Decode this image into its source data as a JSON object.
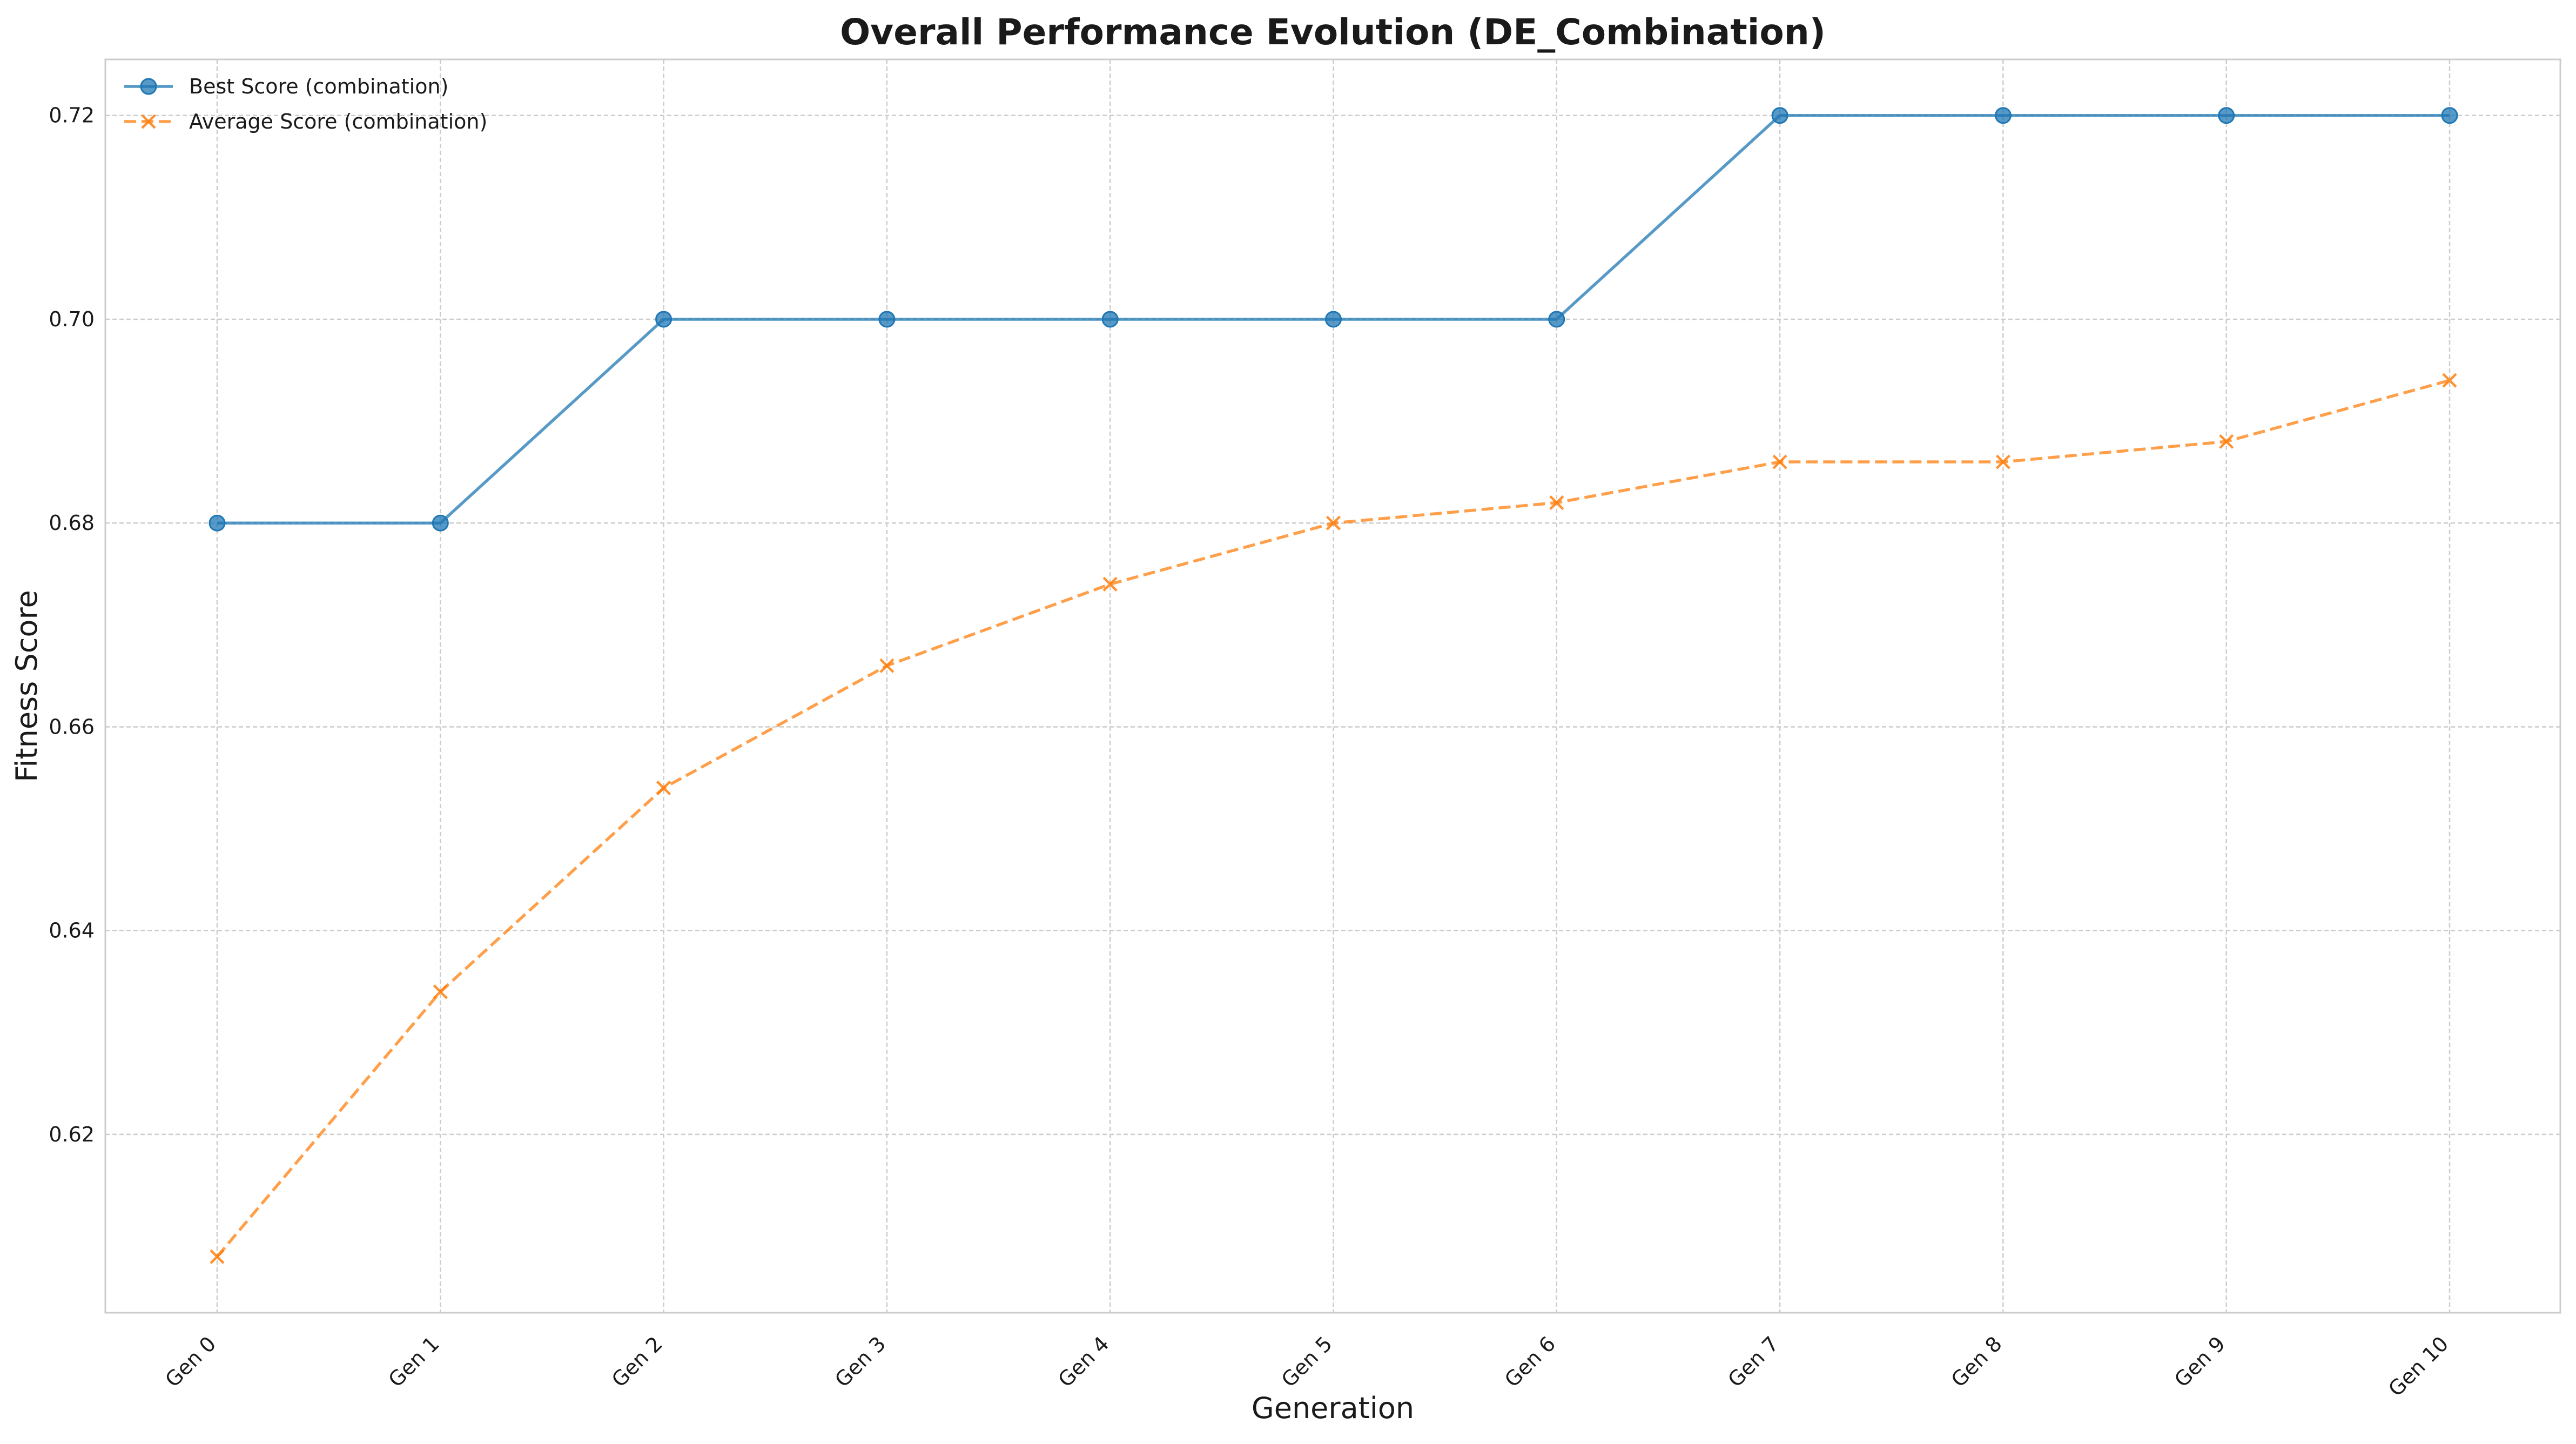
{
  "chart_data": {
    "type": "line",
    "title": "Overall Performance Evolution (DE_Combination)",
    "xlabel": "Generation",
    "ylabel": "Fitness Score",
    "categories": [
      "Gen 0",
      "Gen 1",
      "Gen 2",
      "Gen 3",
      "Gen 4",
      "Gen 5",
      "Gen 6",
      "Gen 7",
      "Gen 8",
      "Gen 9",
      "Gen 10"
    ],
    "y_ticks": [
      "0.62",
      "0.64",
      "0.66",
      "0.68",
      "0.70",
      "0.72"
    ],
    "ylim": [
      0.6025,
      0.7255
    ],
    "grid": true,
    "legend_position": "top-left",
    "series": [
      {
        "name": "Best Score (combination)",
        "color": "#1f77b4",
        "line_style": "solid",
        "marker": "circle",
        "values": [
          0.68,
          0.68,
          0.7,
          0.7,
          0.7,
          0.7,
          0.7,
          0.72,
          0.72,
          0.72,
          0.72
        ]
      },
      {
        "name": "Average Score (combination)",
        "color": "#ff7f0e",
        "line_style": "dashed",
        "marker": "x",
        "values": [
          0.608,
          0.634,
          0.654,
          0.666,
          0.674,
          0.68,
          0.682,
          0.686,
          0.686,
          0.688,
          0.694
        ]
      }
    ]
  }
}
